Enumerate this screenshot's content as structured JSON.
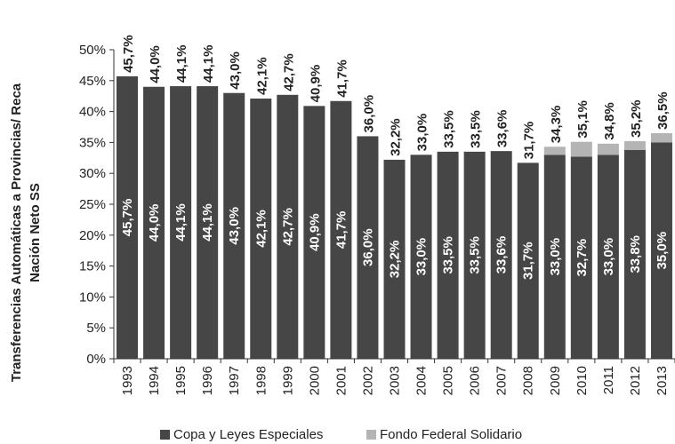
{
  "chart_data": {
    "type": "bar",
    "stacked": true,
    "categories": [
      "1993",
      "1994",
      "1995",
      "1996",
      "1997",
      "1998",
      "1999",
      "2000",
      "2001",
      "2002",
      "2003",
      "2004",
      "2005",
      "2006",
      "2007",
      "2008",
      "2009",
      "2010",
      "2011",
      "2012",
      "2013"
    ],
    "series": [
      {
        "name": "Copa y Leyes Especiales",
        "color": "#464646",
        "values": [
          45.7,
          44.0,
          44.1,
          44.1,
          43.0,
          42.1,
          42.7,
          40.9,
          41.7,
          36.0,
          32.2,
          33.0,
          33.5,
          33.5,
          33.6,
          31.7,
          33.0,
          32.7,
          33.0,
          33.8,
          35.0
        ],
        "labels": [
          "45,7%",
          "44,0%",
          "44,1%",
          "44,1%",
          "43,0%",
          "42,1%",
          "42,7%",
          "40,9%",
          "41,7%",
          "36,0%",
          "32,2%",
          "33,0%",
          "33,5%",
          "33,5%",
          "33,6%",
          "31,7%",
          "33,0%",
          "32,7%",
          "33,0%",
          "33,8%",
          "35,0%"
        ]
      },
      {
        "name": "Fondo Federal Solidario",
        "color": "#b4b4b4",
        "values": [
          0,
          0,
          0,
          0,
          0,
          0,
          0,
          0,
          0,
          0,
          0,
          0,
          0,
          0,
          0,
          0,
          1.3,
          2.4,
          1.8,
          1.4,
          1.5
        ]
      }
    ],
    "totals": [
      45.7,
      44.0,
      44.1,
      44.1,
      43.0,
      42.1,
      42.7,
      40.9,
      41.7,
      36.0,
      32.2,
      33.0,
      33.5,
      33.5,
      33.6,
      31.7,
      34.3,
      35.1,
      34.8,
      35.2,
      36.5
    ],
    "total_labels": [
      "45,7%",
      "44,0%",
      "44,1%",
      "44,1%",
      "43,0%",
      "42,1%",
      "42,7%",
      "40,9%",
      "41,7%",
      "36,0%",
      "32,2%",
      "33,0%",
      "33,5%",
      "33,5%",
      "33,6%",
      "31,7%",
      "34,3%",
      "35,1%",
      "34,8%",
      "35,2%",
      "36,5%"
    ],
    "ylabel_lines": [
      "Transferencias Automáticas a Provincias/ Reca",
      "Nación Neto SS"
    ],
    "ylim": [
      0,
      50
    ],
    "yticks": [
      0,
      5,
      10,
      15,
      20,
      25,
      30,
      35,
      40,
      45,
      50
    ],
    "ytick_labels": [
      "0%",
      "5%",
      "10%",
      "15%",
      "20%",
      "25%",
      "30%",
      "35%",
      "40%",
      "45%",
      "50%"
    ],
    "grid": false,
    "legend_position": "bottom"
  }
}
